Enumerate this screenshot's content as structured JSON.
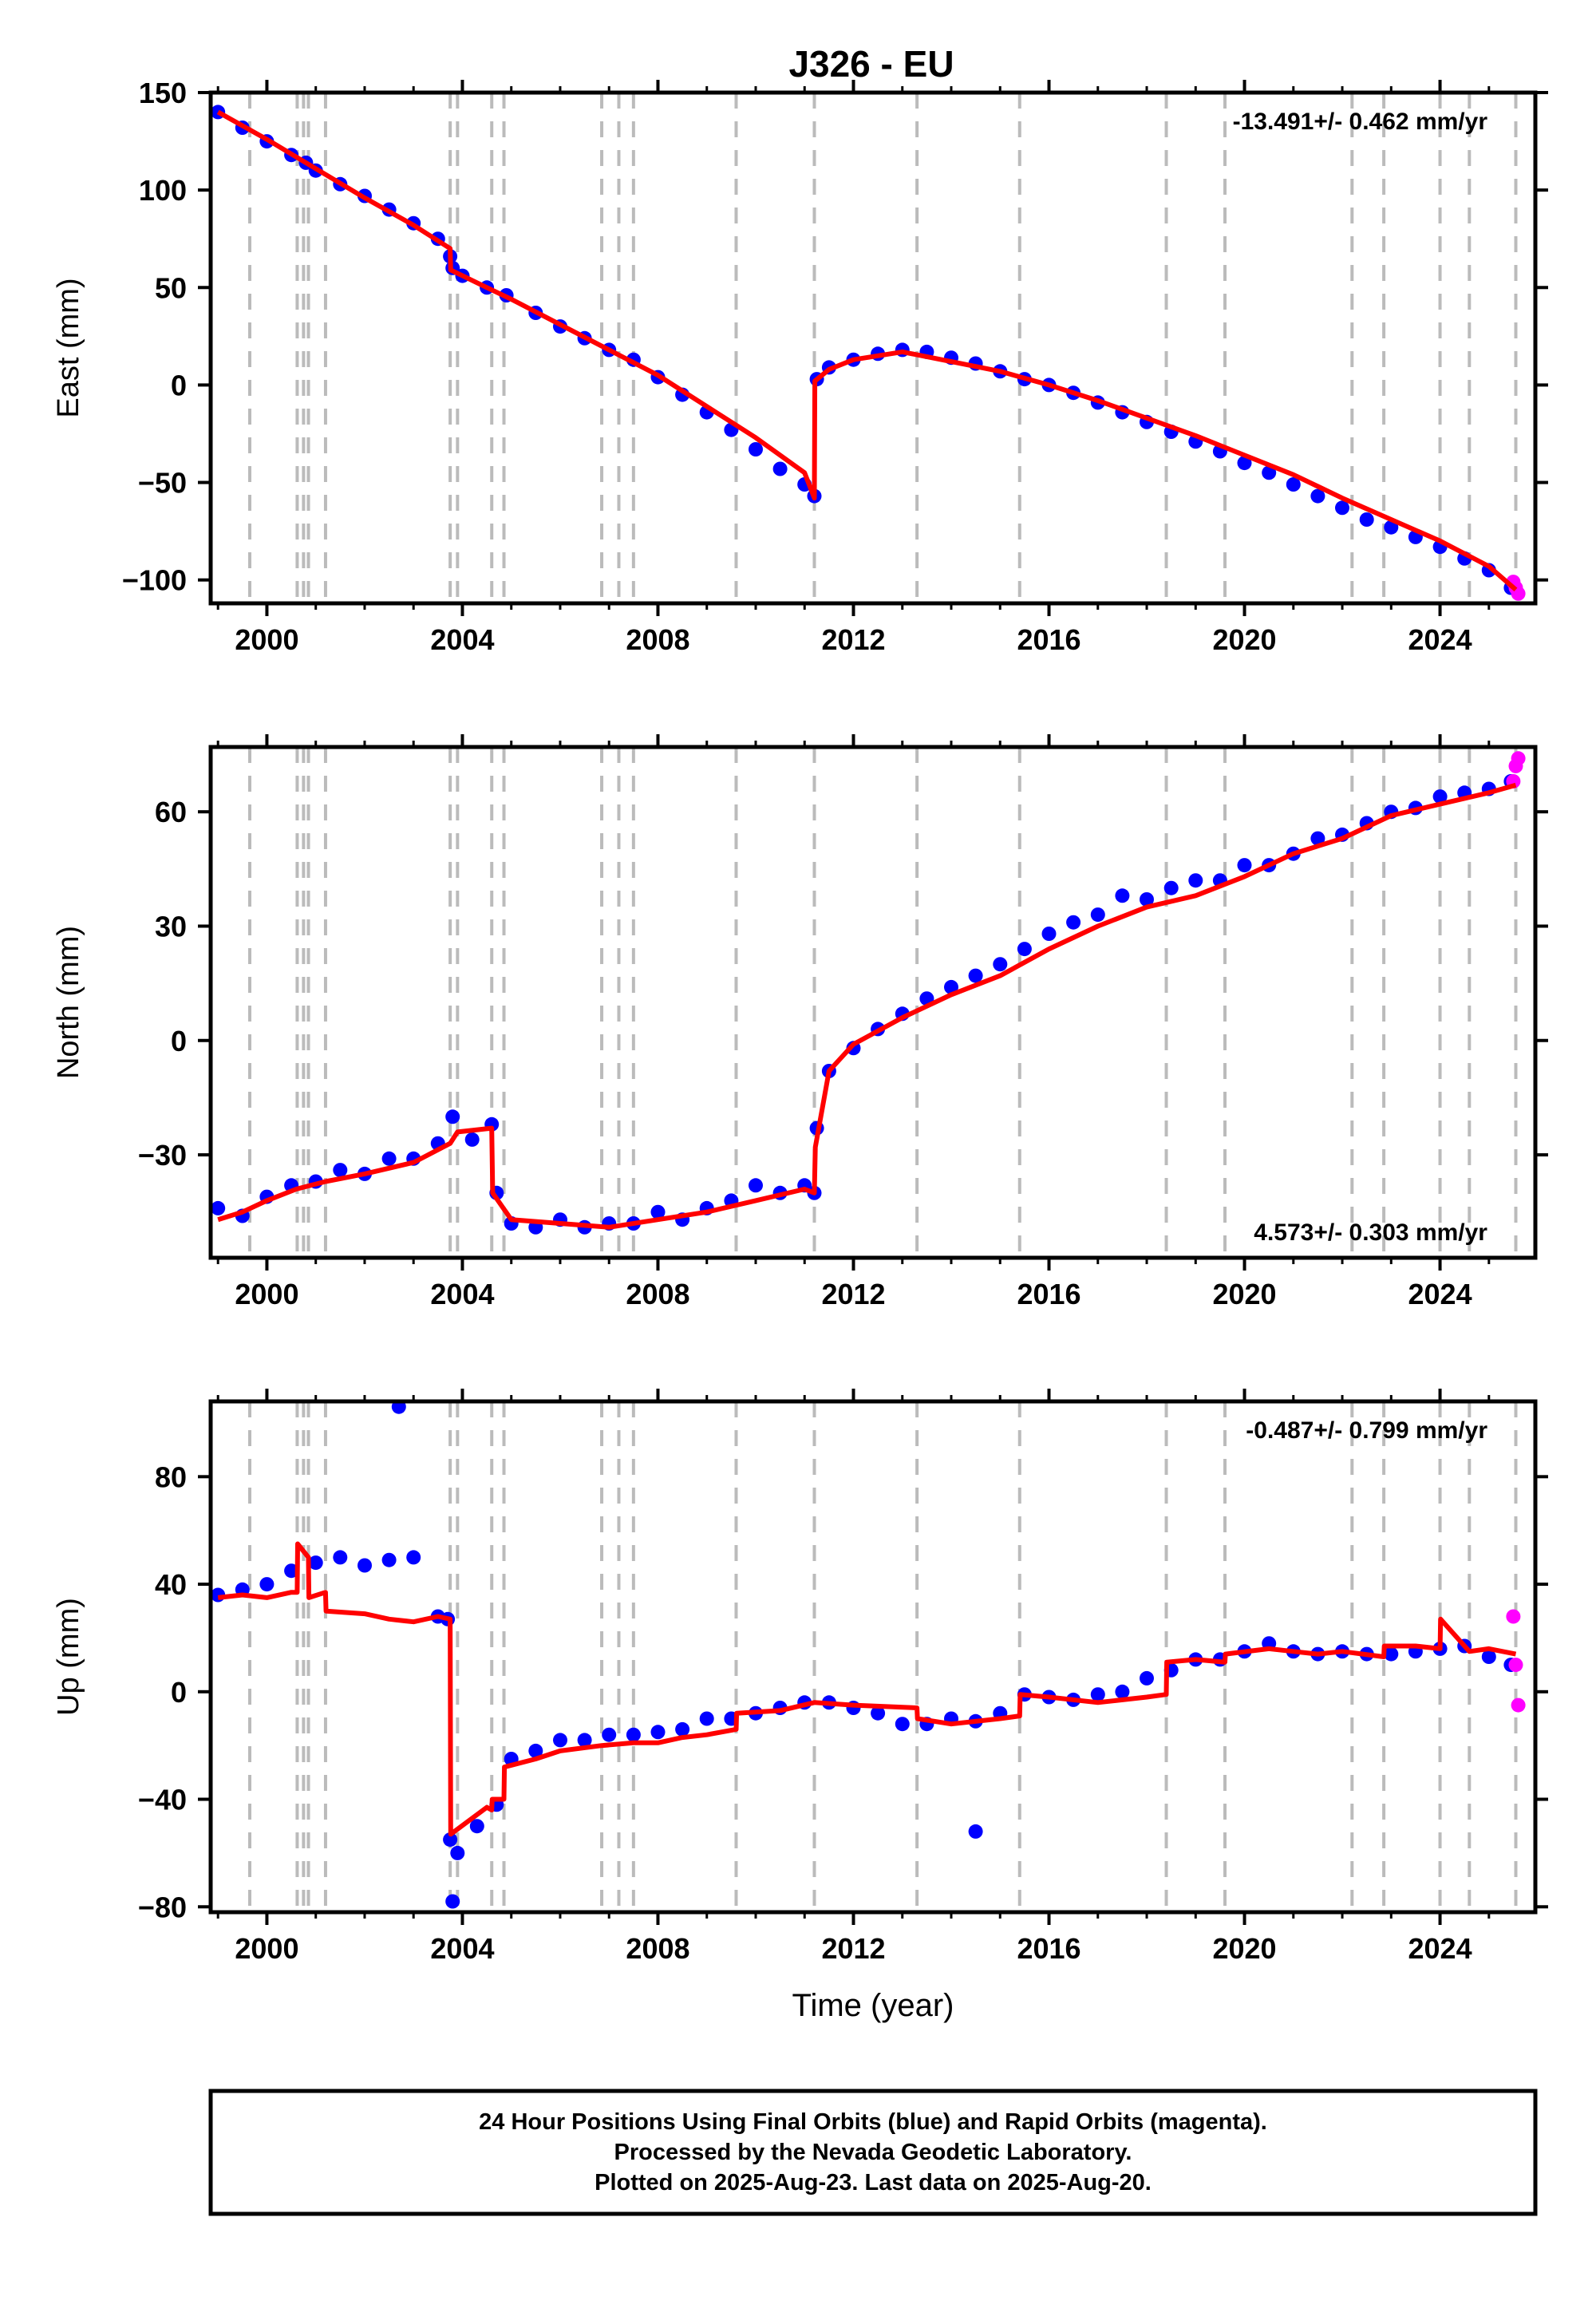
{
  "title": "J326 - EU",
  "footer": {
    "line1": "24 Hour Positions Using Final Orbits (blue) and Rapid Orbits (magenta).",
    "line2": "Processed by the Nevada Geodetic Laboratory.",
    "line3": "Plotted on 2025-Aug-23. Last data on 2025-Aug-20."
  },
  "colors": {
    "final_orbits": "#0000ff",
    "rapid_orbits": "#ff00ff",
    "model": "#ff0000",
    "event_lines": "#bbbbbb"
  },
  "chart_data": [
    {
      "type": "scatter",
      "panel": "east",
      "title": "J326 - EU",
      "xlabel": "",
      "ylabel": "East (mm)",
      "xlim": [
        1998.85,
        2025.95
      ],
      "ylim": [
        -112,
        150
      ],
      "xticks": [
        2000,
        2004,
        2008,
        2012,
        2016,
        2020,
        2024
      ],
      "yticks": [
        -100,
        -50,
        0,
        50,
        100,
        150
      ],
      "rate_label": "-13.491+/- 0.462 mm/yr",
      "rate_position": "top-right",
      "event_lines": [
        1999.65,
        2000.62,
        2000.75,
        2000.85,
        2001.2,
        2003.75,
        2003.9,
        2004.6,
        2004.85,
        2006.85,
        2007.2,
        2007.5,
        2009.6,
        2011.2,
        2013.3,
        2015.4,
        2018.4,
        2019.6,
        2022.2,
        2022.85,
        2024.0,
        2024.6,
        2025.55
      ],
      "series": [
        {
          "name": "Final Orbits",
          "kind": "points",
          "x": [
            1999.0,
            1999.5,
            2000.0,
            2000.5,
            2000.8,
            2001.0,
            2001.5,
            2002.0,
            2002.5,
            2003.0,
            2003.5,
            2003.75,
            2003.8,
            2004.0,
            2004.5,
            2004.9,
            2005.5,
            2006.0,
            2006.5,
            2007.0,
            2007.5,
            2008.0,
            2008.5,
            2009.0,
            2009.5,
            2010.0,
            2010.5,
            2011.0,
            2011.2,
            2011.25,
            2011.5,
            2012.0,
            2012.5,
            2013.0,
            2013.5,
            2014.0,
            2014.5,
            2015.0,
            2015.5,
            2016.0,
            2016.5,
            2017.0,
            2017.5,
            2018.0,
            2018.5,
            2019.0,
            2019.5,
            2020.0,
            2020.5,
            2021.0,
            2021.5,
            2022.0,
            2022.5,
            2023.0,
            2023.5,
            2024.0,
            2024.5,
            2025.0,
            2025.45
          ],
          "y": [
            140,
            132,
            125,
            118,
            114,
            110,
            103,
            97,
            90,
            83,
            75,
            66,
            60,
            56,
            50,
            46,
            37,
            30,
            24,
            18,
            13,
            4,
            -5,
            -14,
            -23,
            -33,
            -43,
            -51,
            -57,
            3,
            9,
            13,
            16,
            18,
            17,
            14,
            11,
            7,
            3,
            0,
            -4,
            -9,
            -14,
            -19,
            -24,
            -29,
            -34,
            -40,
            -45,
            -51,
            -57,
            -63,
            -69,
            -73,
            -78,
            -83,
            -89,
            -95,
            -104
          ]
        },
        {
          "name": "Rapid Orbits",
          "kind": "points",
          "x": [
            2025.5,
            2025.55,
            2025.6
          ],
          "y": [
            -101,
            -104,
            -107
          ]
        },
        {
          "name": "Model",
          "kind": "line",
          "x": [
            1999.0,
            2000.0,
            2001.0,
            2002.0,
            2003.0,
            2003.75,
            2003.76,
            2004.5,
            2005.0,
            2006.0,
            2007.0,
            2008.0,
            2009.0,
            2010.0,
            2011.0,
            2011.2,
            2011.21,
            2011.5,
            2012.0,
            2013.0,
            2014.0,
            2015.0,
            2016.0,
            2017.0,
            2018.0,
            2019.0,
            2020.0,
            2021.0,
            2022.0,
            2023.0,
            2024.0,
            2025.0,
            2025.55
          ],
          "y": [
            140,
            126,
            111,
            96,
            82,
            70,
            59,
            50,
            44,
            31,
            18,
            5,
            -11,
            -27,
            -45,
            -58,
            2,
            8,
            13,
            17,
            12,
            7,
            0,
            -8,
            -17,
            -26,
            -36,
            -46,
            -58,
            -69,
            -80,
            -93,
            -105
          ]
        }
      ]
    },
    {
      "type": "scatter",
      "panel": "north",
      "xlabel": "",
      "ylabel": "North (mm)",
      "xlim": [
        1998.85,
        2025.95
      ],
      "ylim": [
        -57,
        77
      ],
      "xticks": [
        2000,
        2004,
        2008,
        2012,
        2016,
        2020,
        2024
      ],
      "yticks": [
        -30,
        0,
        30,
        60
      ],
      "rate_label": "4.573+/- 0.303 mm/yr",
      "rate_position": "bottom-right",
      "event_lines": [
        1999.65,
        2000.62,
        2000.75,
        2000.85,
        2001.2,
        2003.75,
        2003.9,
        2004.6,
        2004.85,
        2006.85,
        2007.2,
        2007.5,
        2009.6,
        2011.2,
        2013.3,
        2015.4,
        2018.4,
        2019.6,
        2022.2,
        2022.85,
        2024.0,
        2024.6,
        2025.55
      ],
      "series": [
        {
          "name": "Final Orbits",
          "kind": "points",
          "x": [
            1999.0,
            1999.5,
            2000.0,
            2000.5,
            2001.0,
            2001.5,
            2002.0,
            2002.5,
            2003.0,
            2003.5,
            2003.8,
            2004.2,
            2004.6,
            2004.7,
            2005.0,
            2005.5,
            2006.0,
            2006.5,
            2007.0,
            2007.5,
            2008.0,
            2008.5,
            2009.0,
            2009.5,
            2010.0,
            2010.5,
            2011.0,
            2011.2,
            2011.25,
            2011.5,
            2012.0,
            2012.5,
            2013.0,
            2013.5,
            2014.0,
            2014.5,
            2015.0,
            2015.5,
            2016.0,
            2016.5,
            2017.0,
            2017.5,
            2018.0,
            2018.5,
            2019.0,
            2019.5,
            2020.0,
            2020.5,
            2021.0,
            2021.5,
            2022.0,
            2022.5,
            2023.0,
            2023.5,
            2024.0,
            2024.5,
            2025.0,
            2025.45
          ],
          "y": [
            -44,
            -46,
            -41,
            -38,
            -37,
            -34,
            -35,
            -31,
            -31,
            -27,
            -20,
            -26,
            -22,
            -40,
            -48,
            -49,
            -47,
            -49,
            -48,
            -48,
            -45,
            -47,
            -44,
            -42,
            -38,
            -40,
            -38,
            -40,
            -23,
            -8,
            -2,
            3,
            7,
            11,
            14,
            17,
            20,
            24,
            28,
            31,
            33,
            38,
            37,
            40,
            42,
            42,
            46,
            46,
            49,
            53,
            54,
            57,
            60,
            61,
            64,
            65,
            66,
            68
          ]
        },
        {
          "name": "Rapid Orbits",
          "kind": "points",
          "x": [
            2025.5,
            2025.55,
            2025.6
          ],
          "y": [
            68,
            72,
            74
          ]
        },
        {
          "name": "Model",
          "kind": "line",
          "x": [
            1999.0,
            1999.5,
            2000.0,
            2000.6,
            2001.2,
            2002.0,
            2003.0,
            2003.75,
            2003.9,
            2004.6,
            2004.62,
            2005.0,
            2006.0,
            2007.0,
            2008.0,
            2009.0,
            2010.0,
            2011.0,
            2011.2,
            2011.22,
            2011.5,
            2012.0,
            2013.0,
            2014.0,
            2015.0,
            2016.0,
            2017.0,
            2018.0,
            2019.0,
            2020.0,
            2021.0,
            2022.0,
            2023.0,
            2024.0,
            2025.0,
            2025.55
          ],
          "y": [
            -47,
            -45,
            -42,
            -39,
            -37,
            -35,
            -32,
            -27,
            -24,
            -23,
            -40,
            -47,
            -48,
            -49,
            -47,
            -45,
            -42,
            -39,
            -40,
            -28,
            -8,
            -1,
            6,
            12,
            17,
            24,
            30,
            35,
            38,
            43,
            49,
            53,
            59,
            62,
            65,
            67
          ]
        }
      ]
    },
    {
      "type": "scatter",
      "panel": "up",
      "xlabel": "Time (year)",
      "ylabel": "Up (mm)",
      "xlim": [
        1998.85,
        2025.95
      ],
      "ylim": [
        -82,
        108
      ],
      "xticks": [
        2000,
        2004,
        2008,
        2012,
        2016,
        2020,
        2024
      ],
      "yticks": [
        -80,
        -40,
        0,
        40,
        80
      ],
      "rate_label": "-0.487+/- 0.799 mm/yr",
      "rate_position": "top-right",
      "event_lines": [
        1999.65,
        2000.62,
        2000.75,
        2000.85,
        2001.2,
        2003.75,
        2003.9,
        2004.6,
        2004.85,
        2006.85,
        2007.2,
        2007.5,
        2009.6,
        2011.2,
        2013.3,
        2015.4,
        2018.4,
        2019.6,
        2022.2,
        2022.85,
        2024.0,
        2024.6,
        2025.55
      ],
      "series": [
        {
          "name": "Final Orbits",
          "kind": "points",
          "x": [
            1999.0,
            1999.5,
            2000.0,
            2000.5,
            2001.0,
            2001.5,
            2002.0,
            2002.5,
            2003.0,
            2003.5,
            2003.7,
            2003.75,
            2003.9,
            2004.3,
            2004.7,
            2005.0,
            2005.5,
            2006.0,
            2006.5,
            2007.0,
            2007.5,
            2008.0,
            2008.5,
            2009.0,
            2009.5,
            2010.0,
            2010.5,
            2011.0,
            2011.5,
            2012.0,
            2012.5,
            2013.0,
            2013.5,
            2014.0,
            2014.5,
            2015.0,
            2015.5,
            2016.0,
            2016.5,
            2017.0,
            2017.5,
            2018.0,
            2018.5,
            2019.0,
            2019.5,
            2020.0,
            2020.5,
            2021.0,
            2021.5,
            2022.0,
            2022.5,
            2023.0,
            2023.5,
            2024.0,
            2024.5,
            2025.0,
            2025.45,
            2002.7,
            2003.8,
            2014.5
          ],
          "y": [
            36,
            38,
            40,
            45,
            48,
            50,
            47,
            49,
            50,
            28,
            27,
            -55,
            -60,
            -50,
            -42,
            -25,
            -22,
            -18,
            -18,
            -16,
            -16,
            -15,
            -14,
            -10,
            -10,
            -8,
            -6,
            -4,
            -4,
            -6,
            -8,
            -12,
            -12,
            -10,
            -11,
            -8,
            -1,
            -2,
            -3,
            -1,
            0,
            5,
            8,
            12,
            12,
            15,
            18,
            15,
            14,
            15,
            14,
            14,
            15,
            16,
            17,
            13,
            10,
            106,
            -78,
            -52
          ]
        },
        {
          "name": "Rapid Orbits",
          "kind": "points",
          "x": [
            2025.5,
            2025.55,
            2025.6
          ],
          "y": [
            28,
            10,
            -5
          ]
        },
        {
          "name": "Model",
          "kind": "line",
          "x": [
            1999.0,
            1999.5,
            2000.0,
            2000.5,
            2000.62,
            2000.63,
            2000.85,
            2000.86,
            2001.2,
            2001.21,
            2002.0,
            2002.5,
            2003.0,
            2003.5,
            2003.75,
            2003.76,
            2004.5,
            2004.6,
            2004.61,
            2004.85,
            2004.86,
            2005.5,
            2006.0,
            2006.85,
            2007.5,
            2008.0,
            2008.5,
            2009.0,
            2009.6,
            2009.61,
            2010.5,
            2011.2,
            2012.0,
            2013.3,
            2013.31,
            2014.0,
            2015.0,
            2015.4,
            2015.41,
            2016.0,
            2017.0,
            2018.0,
            2018.4,
            2018.41,
            2019.0,
            2019.6,
            2019.61,
            2020.5,
            2021.0,
            2021.5,
            2022.0,
            2022.85,
            2022.86,
            2023.5,
            2024.0,
            2024.01,
            2024.6,
            2025.0,
            2025.55
          ],
          "y": [
            35,
            36,
            35,
            37,
            37,
            55,
            50,
            35,
            37,
            30,
            29,
            27,
            26,
            28,
            27,
            -53,
            -43,
            -44,
            -40,
            -40,
            -28,
            -25,
            -22,
            -20,
            -19,
            -19,
            -17,
            -16,
            -14,
            -8,
            -7,
            -4,
            -5,
            -6,
            -10,
            -12,
            -10,
            -9,
            -1,
            -2,
            -4,
            -2,
            -1,
            11,
            12,
            11,
            14,
            16,
            15,
            14,
            15,
            13,
            17,
            17,
            16,
            27,
            15,
            16,
            14
          ]
        }
      ]
    }
  ]
}
